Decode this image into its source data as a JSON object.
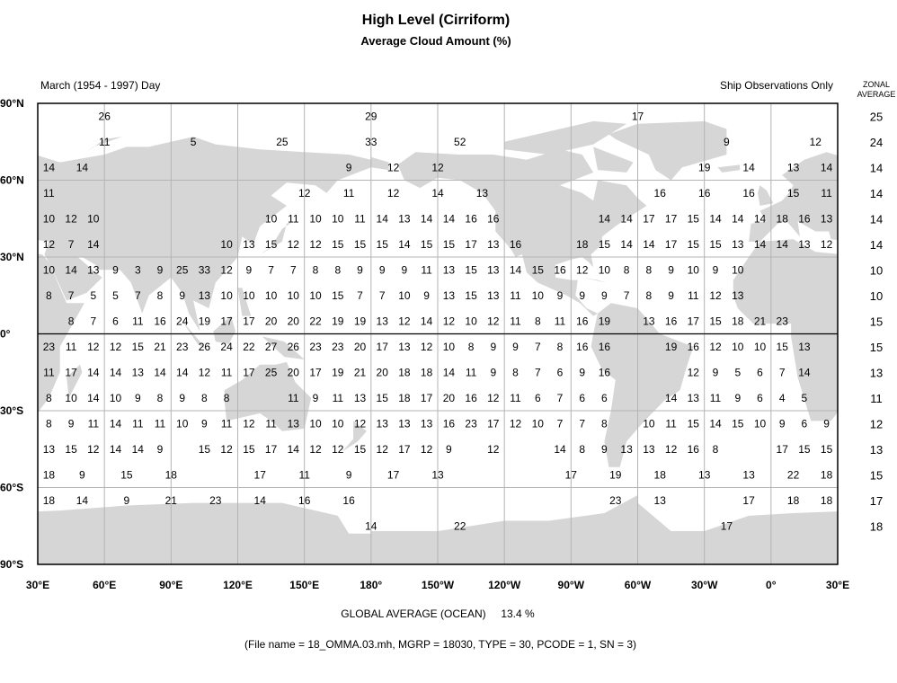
{
  "header": {
    "title": "High Level (Cirriform)",
    "subtitle": "Average Cloud Amount (%)",
    "period": "March (1954 - 1997) Day",
    "source": "Ship Observations Only",
    "zonal_header_1": "ZONAL",
    "zonal_header_2": "AVERAGE"
  },
  "footer": {
    "global_average_label": "GLOBAL AVERAGE (OCEAN)",
    "global_average_value": "13.4 %",
    "file_info": "(File name = 18_OMMA.03.mh, MGRP = 18030, TYPE = 30, PCODE = 1, SN = 3)"
  },
  "colors": {
    "land": "#d6d6d6",
    "grid": "#b4b4b4",
    "frame": "#000000"
  },
  "chart_data": {
    "type": "map",
    "projection": "equirectangular",
    "lon_range": [
      "30°E",
      "30°E"
    ],
    "lat_range": [
      -90,
      90
    ],
    "grid": true,
    "lat_labels": [
      {
        "lat": 90,
        "label": "90°N"
      },
      {
        "lat": 60,
        "label": "60°N"
      },
      {
        "lat": 30,
        "label": "30°N"
      },
      {
        "lat": 0,
        "label": "0°"
      },
      {
        "lat": -30,
        "label": "30°S"
      },
      {
        "lat": -60,
        "label": "60°S"
      },
      {
        "lat": -90,
        "label": "90°S"
      }
    ],
    "lon_labels": [
      {
        "lon": 30,
        "label": "30°E"
      },
      {
        "lon": 60,
        "label": "60°E"
      },
      {
        "lon": 90,
        "label": "90°E"
      },
      {
        "lon": 120,
        "label": "120°E"
      },
      {
        "lon": 150,
        "label": "150°E"
      },
      {
        "lon": 180,
        "label": "180°"
      },
      {
        "lon": -150,
        "label": "150°W"
      },
      {
        "lon": -120,
        "label": "120°W"
      },
      {
        "lon": -90,
        "label": "90°W"
      },
      {
        "lon": -60,
        "label": "60°W"
      },
      {
        "lon": -30,
        "label": "30°W"
      },
      {
        "lon": 0,
        "label": "0°"
      },
      {
        "lon": 390,
        "label": "30°E"
      }
    ],
    "grid_lons": [
      35,
      45,
      55,
      65,
      75,
      85,
      95,
      105,
      115,
      125,
      135,
      145,
      155,
      165,
      175,
      -175,
      -165,
      -155,
      -145,
      -135,
      -125,
      -115,
      -105,
      -95,
      -85,
      -75,
      -65,
      -55,
      -45,
      -35,
      -25,
      -15,
      -5,
      5,
      15,
      25
    ],
    "rows": [
      {
        "lat": 85,
        "zonal": 25,
        "cells": [
          [
            60,
            26
          ],
          [
            180,
            29
          ],
          [
            -60,
            17
          ]
        ]
      },
      {
        "lat": 75,
        "zonal": 24,
        "cells": [
          [
            60,
            11
          ],
          [
            100,
            5
          ],
          [
            140,
            25
          ],
          [
            180,
            33
          ],
          [
            -140,
            52
          ],
          [
            -20,
            9
          ],
          [
            20,
            12
          ]
        ]
      },
      {
        "lat": 65,
        "zonal": 14,
        "cells": [
          [
            35,
            14
          ],
          [
            50,
            14
          ],
          [
            170,
            9
          ],
          [
            -170,
            12
          ],
          [
            -150,
            12
          ],
          [
            -30,
            19
          ],
          [
            -10,
            14
          ],
          [
            10,
            13
          ],
          [
            25,
            14
          ]
        ]
      },
      {
        "lat": 55,
        "zonal": 14,
        "cells": [
          [
            35,
            11
          ],
          [
            150,
            12
          ],
          [
            170,
            11
          ],
          [
            -170,
            12
          ],
          [
            -150,
            14
          ],
          [
            -130,
            13
          ],
          [
            -50,
            16
          ],
          [
            -30,
            16
          ],
          [
            -10,
            16
          ],
          [
            10,
            15
          ],
          [
            25,
            11
          ]
        ]
      },
      {
        "lat": 45,
        "zonal": 14,
        "values": [
          10,
          12,
          10,
          null,
          null,
          null,
          null,
          null,
          null,
          null,
          10,
          11,
          10,
          10,
          11,
          14,
          13,
          14,
          14,
          16,
          16,
          null,
          null,
          null,
          null,
          14,
          14,
          17,
          17,
          15,
          14,
          14,
          14,
          18,
          16,
          13
        ]
      },
      {
        "lat": 35,
        "zonal": 14,
        "values": [
          12,
          7,
          14,
          null,
          null,
          null,
          null,
          null,
          10,
          13,
          15,
          12,
          12,
          15,
          15,
          15,
          14,
          15,
          15,
          17,
          13,
          16,
          null,
          null,
          18,
          15,
          14,
          14,
          17,
          15,
          15,
          13,
          14,
          14,
          13,
          12
        ]
      },
      {
        "lat": 25,
        "zonal": 10,
        "values": [
          10,
          14,
          13,
          9,
          3,
          9,
          25,
          33,
          12,
          9,
          7,
          7,
          8,
          8,
          9,
          9,
          9,
          11,
          13,
          15,
          13,
          14,
          15,
          16,
          12,
          10,
          8,
          8,
          9,
          10,
          9,
          10,
          null,
          null,
          null,
          null
        ]
      },
      {
        "lat": 15,
        "zonal": 10,
        "values": [
          8,
          7,
          5,
          5,
          7,
          8,
          9,
          13,
          10,
          10,
          10,
          10,
          10,
          15,
          7,
          7,
          10,
          9,
          13,
          15,
          13,
          11,
          10,
          9,
          9,
          9,
          7,
          8,
          9,
          11,
          12,
          13,
          null,
          null,
          null,
          null
        ]
      },
      {
        "lat": 5,
        "zonal": 15,
        "values": [
          null,
          8,
          7,
          6,
          11,
          16,
          24,
          19,
          17,
          17,
          20,
          20,
          22,
          19,
          19,
          13,
          12,
          14,
          12,
          10,
          12,
          11,
          8,
          11,
          16,
          19,
          null,
          13,
          16,
          17,
          15,
          18,
          21,
          23,
          null,
          null
        ]
      },
      {
        "lat": -5,
        "zonal": 15,
        "values": [
          23,
          11,
          12,
          12,
          15,
          21,
          23,
          26,
          24,
          22,
          27,
          26,
          23,
          23,
          20,
          17,
          13,
          12,
          10,
          8,
          9,
          9,
          7,
          8,
          16,
          16,
          null,
          null,
          19,
          16,
          12,
          10,
          10,
          15,
          13,
          null
        ]
      },
      {
        "lat": -15,
        "zonal": 13,
        "values": [
          11,
          17,
          14,
          14,
          13,
          14,
          14,
          12,
          11,
          17,
          25,
          20,
          17,
          19,
          21,
          20,
          18,
          18,
          14,
          11,
          9,
          8,
          7,
          6,
          9,
          16,
          null,
          null,
          null,
          12,
          9,
          5,
          6,
          7,
          14,
          null
        ]
      },
      {
        "lat": -25,
        "zonal": 11,
        "values": [
          8,
          10,
          14,
          10,
          9,
          8,
          9,
          8,
          8,
          null,
          null,
          11,
          9,
          11,
          13,
          15,
          18,
          17,
          20,
          16,
          12,
          11,
          6,
          7,
          6,
          6,
          null,
          null,
          14,
          13,
          11,
          9,
          6,
          4,
          5,
          null
        ]
      },
      {
        "lat": -35,
        "zonal": 12,
        "values": [
          8,
          9,
          11,
          14,
          11,
          11,
          10,
          9,
          11,
          12,
          11,
          13,
          10,
          10,
          12,
          13,
          13,
          13,
          16,
          23,
          17,
          12,
          10,
          7,
          7,
          8,
          null,
          10,
          11,
          15,
          14,
          15,
          10,
          9,
          6,
          9
        ]
      },
      {
        "lat": -45,
        "zonal": 13,
        "values": [
          13,
          15,
          12,
          14,
          14,
          9,
          null,
          15,
          12,
          15,
          17,
          14,
          12,
          12,
          15,
          12,
          17,
          12,
          9,
          null,
          12,
          null,
          null,
          14,
          8,
          9,
          13,
          13,
          12,
          16,
          8,
          null,
          null,
          17,
          15,
          15
        ]
      },
      {
        "lat": -55,
        "zonal": 15,
        "cells": [
          [
            35,
            18
          ],
          [
            50,
            9
          ],
          [
            70,
            15
          ],
          [
            90,
            18
          ],
          [
            130,
            17
          ],
          [
            150,
            11
          ],
          [
            170,
            9
          ],
          [
            -170,
            17
          ],
          [
            -150,
            13
          ],
          [
            -90,
            17
          ],
          [
            -70,
            19
          ],
          [
            -50,
            18
          ],
          [
            -30,
            13
          ],
          [
            -10,
            13
          ],
          [
            10,
            22
          ],
          [
            25,
            18
          ]
        ]
      },
      {
        "lat": -65,
        "zonal": 17,
        "cells": [
          [
            35,
            18
          ],
          [
            50,
            14
          ],
          [
            70,
            9
          ],
          [
            90,
            21
          ],
          [
            110,
            23
          ],
          [
            130,
            14
          ],
          [
            150,
            16
          ],
          [
            170,
            16
          ],
          [
            -70,
            23
          ],
          [
            -50,
            13
          ],
          [
            -10,
            17
          ],
          [
            10,
            18
          ],
          [
            25,
            18
          ]
        ]
      },
      {
        "lat": -75,
        "zonal": 18,
        "cells": [
          [
            180,
            14
          ],
          [
            -140,
            22
          ],
          [
            -20,
            17
          ]
        ]
      }
    ]
  }
}
